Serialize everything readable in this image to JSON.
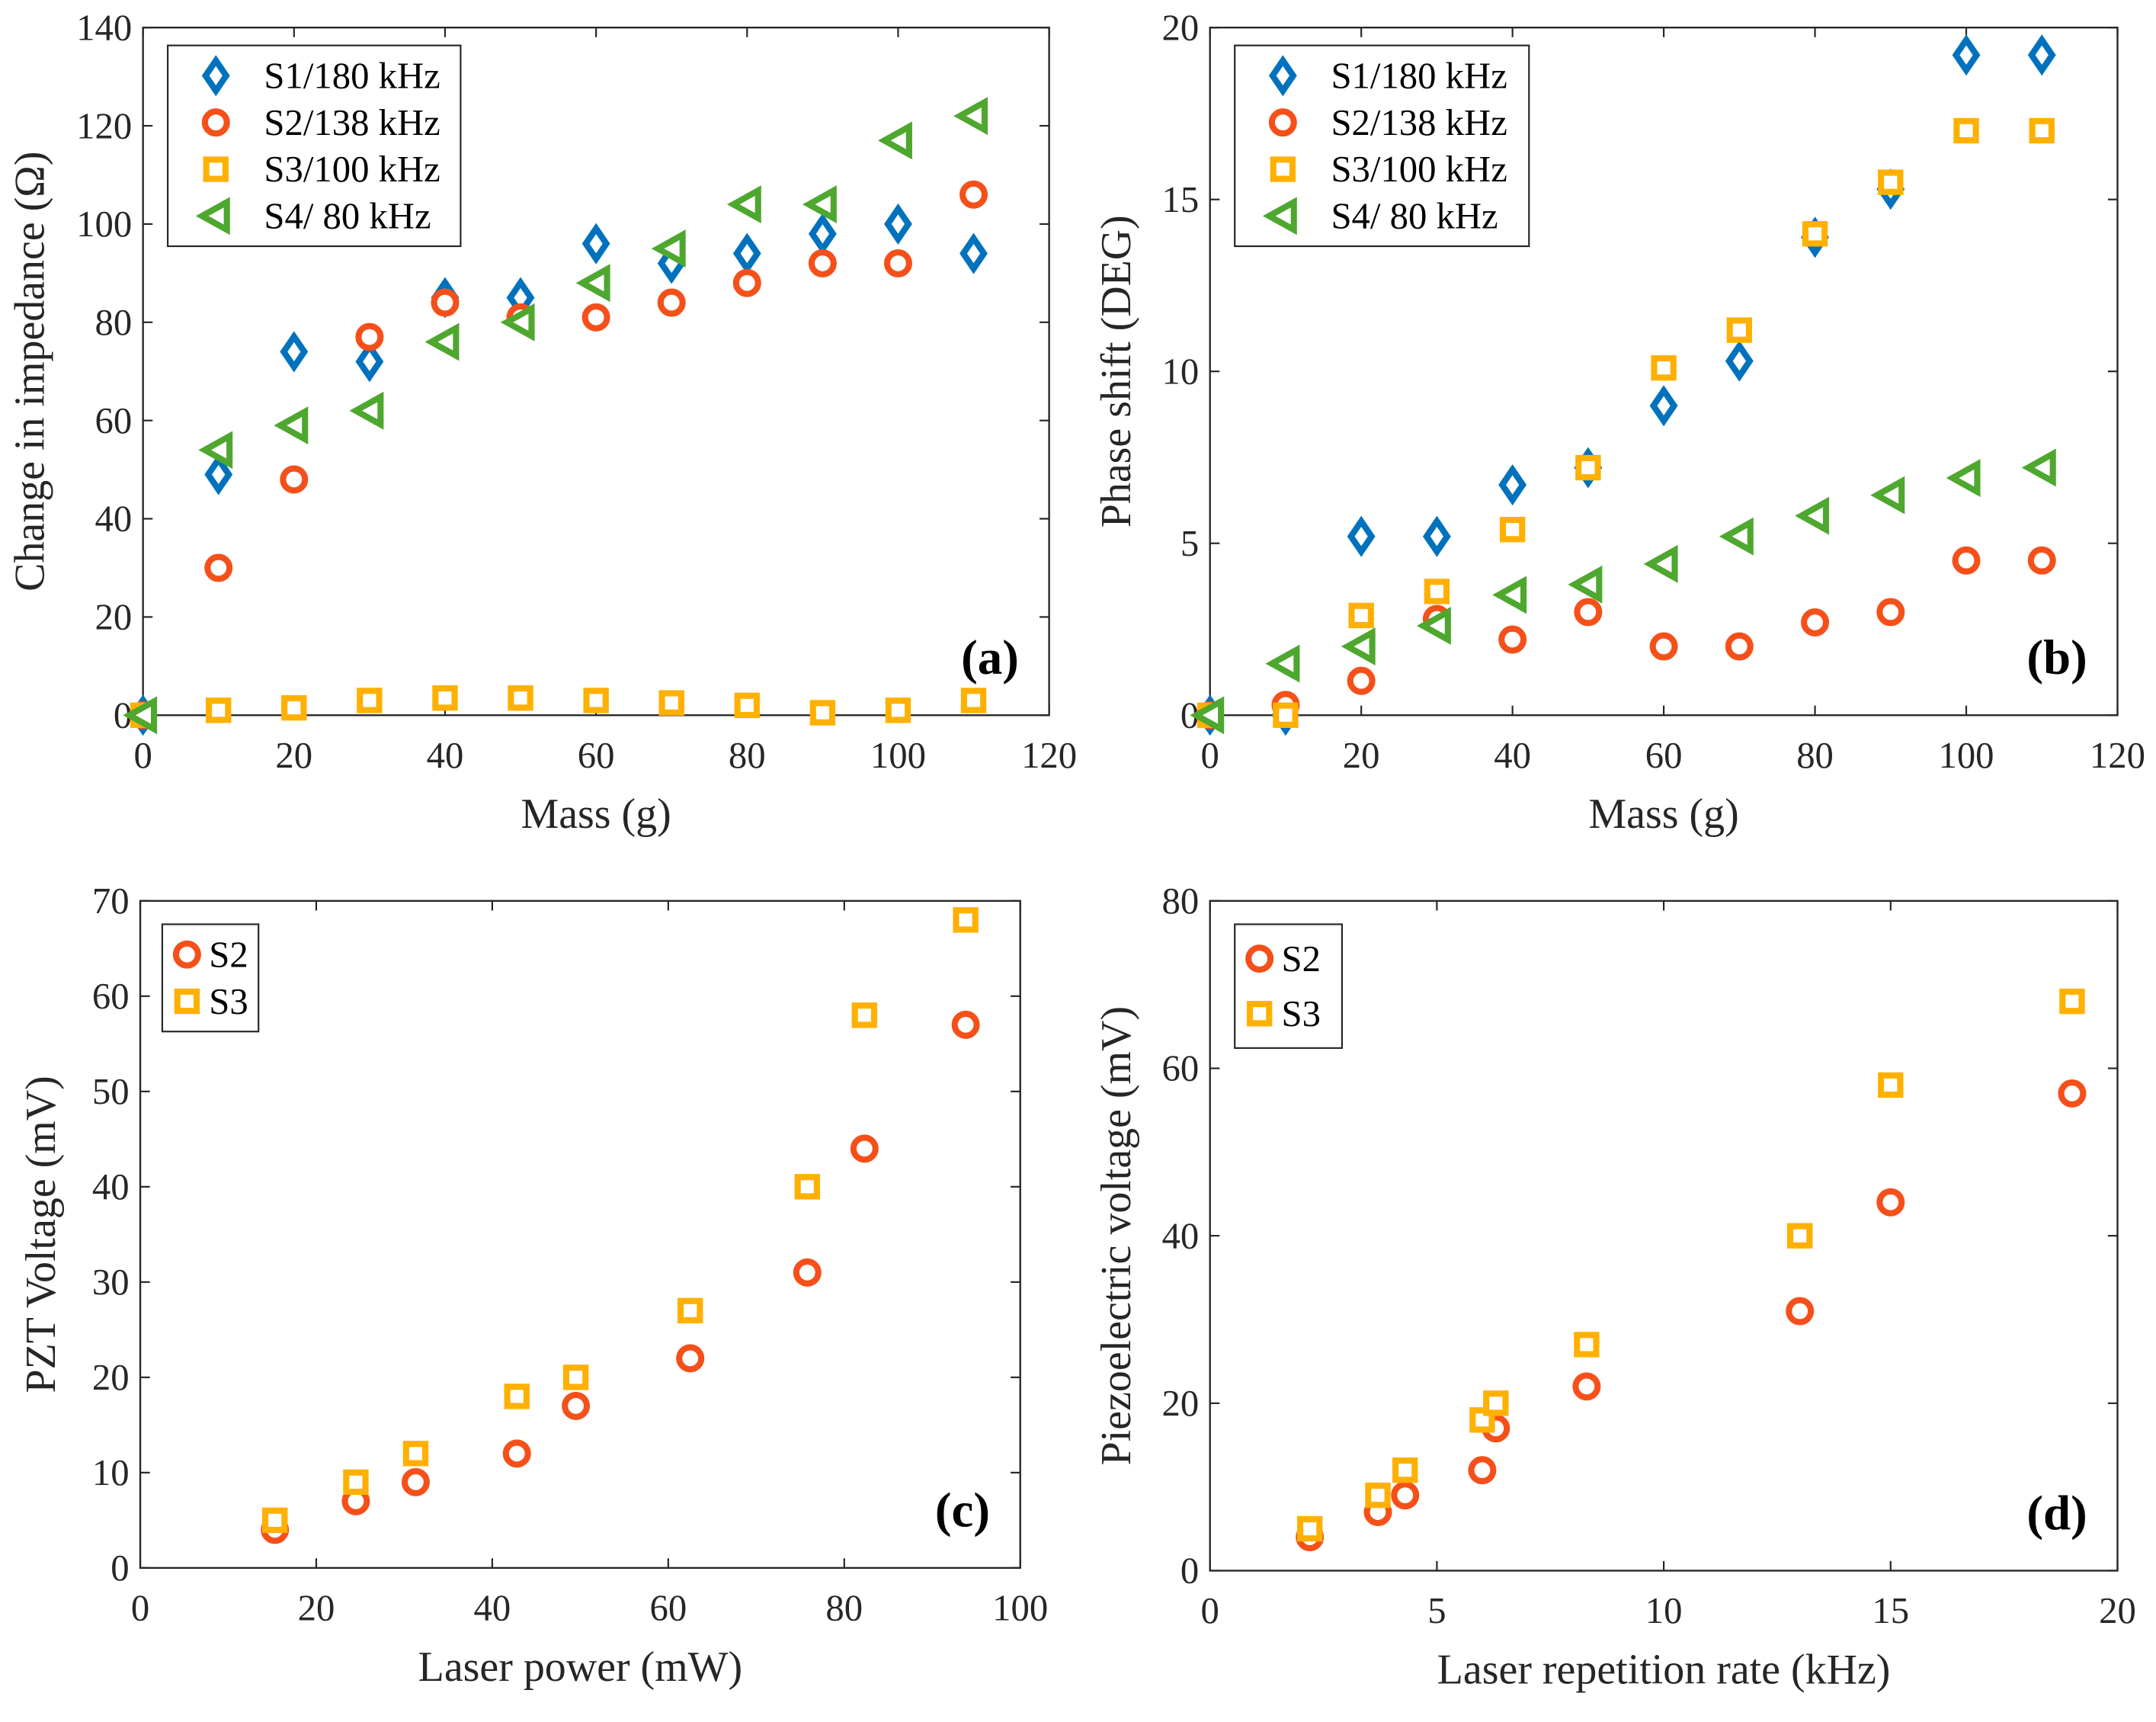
{
  "colors": {
    "S1": "#0072BD",
    "S2": "#F5501A",
    "S3": "#FFB000",
    "S4": "#4EA72E"
  },
  "chart_data": [
    {
      "type": "scatter",
      "panel_label": "(a)",
      "xlabel": "Mass (g)",
      "ylabel": "Change in impedance (Ω)",
      "xlim": [
        0,
        120
      ],
      "ylim": [
        0,
        140
      ],
      "xticks": [
        0,
        20,
        40,
        60,
        80,
        100,
        120
      ],
      "yticks": [
        0,
        20,
        40,
        60,
        80,
        100,
        120,
        140
      ],
      "grid": false,
      "legend": "top-left",
      "x": [
        0,
        10,
        20,
        30,
        40,
        50,
        60,
        70,
        80,
        90,
        100,
        110
      ],
      "series": [
        {
          "name": "S1/180 kHz",
          "marker": "diamond",
          "color_key": "S1",
          "values": [
            0,
            49,
            74,
            72,
            85,
            85,
            96,
            92,
            94,
            98,
            100,
            94
          ]
        },
        {
          "name": "S2/138 kHz",
          "marker": "circle",
          "color_key": "S2",
          "values": [
            0,
            30,
            48,
            77,
            84,
            81,
            81,
            84,
            88,
            92,
            92,
            106
          ]
        },
        {
          "name": "S3/100 kHz",
          "marker": "square",
          "color_key": "S3",
          "values": [
            0,
            1,
            1.5,
            3,
            3.5,
            3.5,
            3,
            2.5,
            2,
            0.5,
            1,
            3
          ]
        },
        {
          "name": "S4/ 80 kHz",
          "marker": "triangle-left",
          "color_key": "S4",
          "values": [
            0,
            54,
            59,
            62,
            76,
            80,
            88,
            95,
            104,
            104,
            117,
            122
          ]
        }
      ]
    },
    {
      "type": "scatter",
      "panel_label": "(b)",
      "xlabel": "Mass (g)",
      "ylabel": "Phase shift (DEG)",
      "xlim": [
        0,
        120
      ],
      "ylim": [
        0,
        20
      ],
      "xticks": [
        0,
        20,
        40,
        60,
        80,
        100,
        120
      ],
      "yticks": [
        0,
        5,
        10,
        15,
        20
      ],
      "grid": false,
      "legend": "top-left",
      "x": [
        0,
        10,
        20,
        30,
        40,
        50,
        60,
        70,
        80,
        90,
        100,
        110
      ],
      "series": [
        {
          "name": "S1/180 kHz",
          "marker": "diamond",
          "color_key": "S1",
          "values": [
            0,
            0,
            5.2,
            5.2,
            6.7,
            7.2,
            9,
            10.3,
            13.9,
            15.3,
            19.2,
            19.2
          ]
        },
        {
          "name": "S2/138 kHz",
          "marker": "circle",
          "color_key": "S2",
          "values": [
            0,
            0.3,
            1,
            2.8,
            2.2,
            3,
            2,
            2,
            2.7,
            3,
            4.5,
            4.5
          ]
        },
        {
          "name": "S3/100 kHz",
          "marker": "square",
          "color_key": "S3",
          "values": [
            0,
            0,
            2.9,
            3.6,
            5.4,
            7.2,
            10.1,
            11.2,
            14,
            15.5,
            17,
            17
          ]
        },
        {
          "name": "S4/ 80 kHz",
          "marker": "triangle-left",
          "color_key": "S4",
          "values": [
            0,
            1.5,
            2,
            2.6,
            3.5,
            3.8,
            4.4,
            5.2,
            5.8,
            6.4,
            6.9,
            7.2
          ]
        }
      ]
    },
    {
      "type": "scatter",
      "panel_label": "(c)",
      "xlabel": "Laser power (mW)",
      "ylabel": "PZT Voltage (mV)",
      "xlim": [
        0,
        100
      ],
      "ylim": [
        0,
        70
      ],
      "xticks": [
        0,
        20,
        40,
        60,
        80,
        100
      ],
      "yticks": [
        0,
        10,
        20,
        30,
        40,
        50,
        60,
        70
      ],
      "grid": false,
      "legend": "top-left",
      "x": [
        15.3,
        24.5,
        31.3,
        42.8,
        49.5,
        62.5,
        75.8,
        82.3,
        93.8
      ],
      "series": [
        {
          "name": "S2",
          "marker": "circle",
          "color_key": "S2",
          "values": [
            4,
            7,
            9,
            12,
            17,
            22,
            31,
            44,
            57
          ]
        },
        {
          "name": "S3",
          "marker": "square",
          "color_key": "S3",
          "values": [
            5,
            9,
            12,
            18,
            20,
            27,
            40,
            58,
            68
          ]
        }
      ]
    },
    {
      "type": "scatter",
      "panel_label": "(d)",
      "xlabel": "Laser repetition rate (kHz)",
      "ylabel": "Piezoelectric voltage (mV)",
      "xlim": [
        0,
        20
      ],
      "ylim": [
        0,
        80
      ],
      "xticks": [
        0,
        5,
        10,
        15,
        20
      ],
      "yticks": [
        0,
        20,
        40,
        60,
        80
      ],
      "grid": false,
      "legend": "top-left",
      "x": [
        2.2,
        3.7,
        4.3,
        6.0,
        6.3,
        8.3,
        13,
        15,
        19
      ],
      "series": [
        {
          "name": "S2",
          "marker": "circle",
          "color_key": "S2",
          "values": [
            4,
            7,
            9,
            12,
            17,
            22,
            31,
            44,
            57
          ]
        },
        {
          "name": "S3",
          "marker": "square",
          "color_key": "S3",
          "values": [
            5,
            9,
            12,
            18,
            20,
            27,
            40,
            58,
            68
          ]
        }
      ]
    }
  ]
}
